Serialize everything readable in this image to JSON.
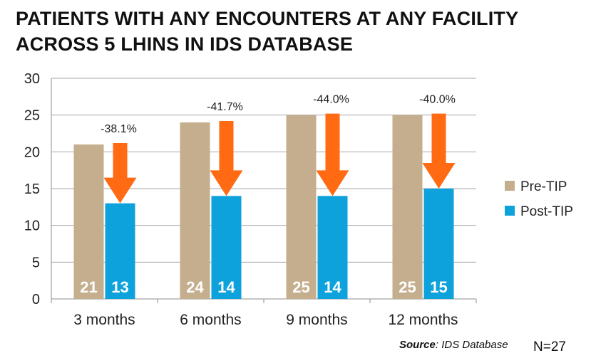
{
  "title": {
    "line1": "PATIENTS WITH  ANY ENCOUNTERS AT ANY FACILITY",
    "line2": "ACROSS 5 LHINS IN IDS DATABASE"
  },
  "chart_data": {
    "type": "bar",
    "categories": [
      "3 months",
      "6 months",
      "9 months",
      "12 months"
    ],
    "series": [
      {
        "name": "Pre-TIP",
        "values": [
          21,
          24,
          25,
          25
        ],
        "color": "#c4ae8e"
      },
      {
        "name": "Post-TIP",
        "values": [
          13,
          14,
          14,
          15
        ],
        "color": "#0ea2dc"
      }
    ],
    "changes": [
      "-38.1%",
      "-41.7%",
      "-44.0%",
      "-40.0%"
    ],
    "ylim": [
      0,
      30
    ],
    "yticks": [
      0,
      5,
      10,
      15,
      20,
      25,
      30
    ],
    "grid": true,
    "legend_position": "right",
    "arrow_color": "#ff6a13"
  },
  "footer": {
    "source_label": "Source",
    "source_text": ": IDS Database",
    "n_text": "N=27"
  }
}
